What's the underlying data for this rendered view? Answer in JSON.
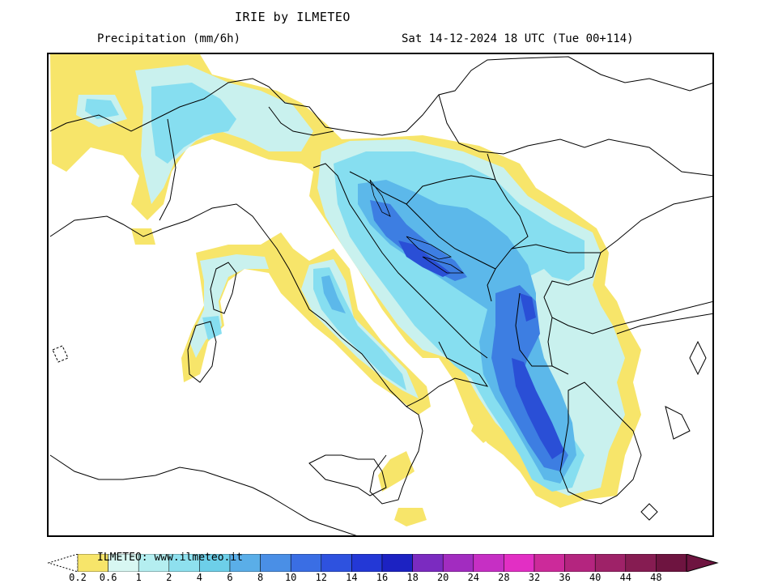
{
  "header": {
    "title": "IRIE by ILMETEO",
    "variable": "Precipitation (mm/6h)",
    "valid_time": "Sat 14-12-2024 18 UTC (Tue 00+114)"
  },
  "legend": {
    "credit": "ILMETEO: www.ilmeteo.it",
    "unit": "mm/6h",
    "ticks": [
      "0.2",
      "0.6",
      "1",
      "2",
      "4",
      "6",
      "8",
      "10",
      "12",
      "14",
      "16",
      "18",
      "20",
      "24",
      "28",
      "32",
      "36",
      "40",
      "44",
      "48"
    ],
    "colors": [
      "#f7e56a",
      "#d8f7f2",
      "#b4eef0",
      "#8ee0ee",
      "#6dcfe9",
      "#5aaee8",
      "#4a8fe6",
      "#3a6ee4",
      "#2e52df",
      "#2338d6",
      "#1c22c2",
      "#7b2bc0",
      "#a22cc0",
      "#c62fc4",
      "#e22fc4",
      "#cc2a9a",
      "#b4257f",
      "#9e2268",
      "#861c52",
      "#6e1440"
    ]
  },
  "map": {
    "region": "Italy and the Balkans",
    "palette": {
      "light": "#f7e56a",
      "pale": "#c9f1ee",
      "cyan": "#86def0",
      "mid": "#5cb8ea",
      "blue": "#3d7ee2",
      "dark": "#2a4fd6",
      "border": "#000000"
    }
  }
}
